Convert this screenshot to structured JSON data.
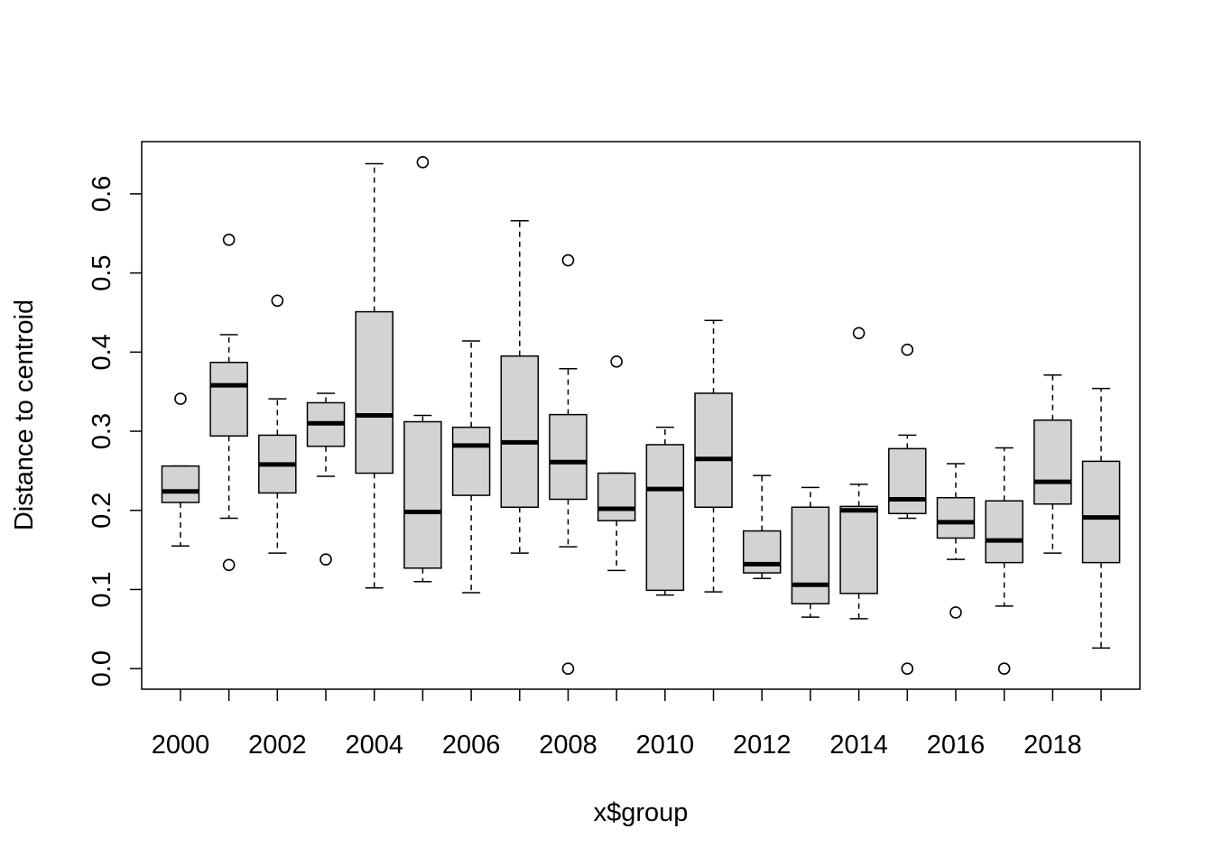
{
  "chart_data": {
    "type": "boxplot",
    "title": "",
    "xlabel": "x$group",
    "ylabel": "Distance to centroid",
    "ylim": [
      -0.026,
      0.666
    ],
    "yticks": [
      "0.0",
      "0.1",
      "0.2",
      "0.3",
      "0.4",
      "0.5",
      "0.6"
    ],
    "xtick_labels": [
      "2000",
      "2002",
      "2004",
      "2006",
      "2008",
      "2010",
      "2012",
      "2014",
      "2016",
      "2018"
    ],
    "grid": false,
    "groups": [
      {
        "group": "2000",
        "low": 0.155,
        "q1": 0.21,
        "median": 0.224,
        "q3": 0.256,
        "high": 0.256,
        "outliers": [
          0.341
        ]
      },
      {
        "group": "2001",
        "low": 0.19,
        "q1": 0.294,
        "median": 0.358,
        "q3": 0.387,
        "high": 0.422,
        "outliers": [
          0.542,
          0.131
        ]
      },
      {
        "group": "2002",
        "low": 0.146,
        "q1": 0.222,
        "median": 0.258,
        "q3": 0.295,
        "high": 0.341,
        "outliers": [
          0.465
        ]
      },
      {
        "group": "2003",
        "low": 0.243,
        "q1": 0.281,
        "median": 0.31,
        "q3": 0.336,
        "high": 0.348,
        "outliers": [
          0.138
        ]
      },
      {
        "group": "2004",
        "low": 0.102,
        "q1": 0.247,
        "median": 0.32,
        "q3": 0.451,
        "high": 0.638,
        "outliers": []
      },
      {
        "group": "2005",
        "low": 0.11,
        "q1": 0.127,
        "median": 0.198,
        "q3": 0.312,
        "high": 0.32,
        "outliers": [
          0.64
        ]
      },
      {
        "group": "2006",
        "low": 0.096,
        "q1": 0.219,
        "median": 0.282,
        "q3": 0.305,
        "high": 0.414,
        "outliers": []
      },
      {
        "group": "2007",
        "low": 0.146,
        "q1": 0.204,
        "median": 0.286,
        "q3": 0.395,
        "high": 0.566,
        "outliers": []
      },
      {
        "group": "2008",
        "low": 0.154,
        "q1": 0.214,
        "median": 0.261,
        "q3": 0.321,
        "high": 0.379,
        "outliers": [
          0.516,
          0.0
        ]
      },
      {
        "group": "2009",
        "low": 0.124,
        "q1": 0.187,
        "median": 0.202,
        "q3": 0.247,
        "high": 0.247,
        "outliers": [
          0.388
        ]
      },
      {
        "group": "2010",
        "low": 0.093,
        "q1": 0.099,
        "median": 0.227,
        "q3": 0.283,
        "high": 0.305,
        "outliers": []
      },
      {
        "group": "2011",
        "low": 0.097,
        "q1": 0.204,
        "median": 0.265,
        "q3": 0.348,
        "high": 0.44,
        "outliers": []
      },
      {
        "group": "2012",
        "low": 0.114,
        "q1": 0.121,
        "median": 0.132,
        "q3": 0.174,
        "high": 0.244,
        "outliers": []
      },
      {
        "group": "2013",
        "low": 0.065,
        "q1": 0.082,
        "median": 0.106,
        "q3": 0.204,
        "high": 0.229,
        "outliers": []
      },
      {
        "group": "2014",
        "low": 0.063,
        "q1": 0.095,
        "median": 0.2,
        "q3": 0.205,
        "high": 0.233,
        "outliers": [
          0.424
        ]
      },
      {
        "group": "2015",
        "low": 0.19,
        "q1": 0.196,
        "median": 0.214,
        "q3": 0.278,
        "high": 0.295,
        "outliers": [
          0.403,
          0.0
        ]
      },
      {
        "group": "2016",
        "low": 0.138,
        "q1": 0.165,
        "median": 0.185,
        "q3": 0.216,
        "high": 0.259,
        "outliers": [
          0.071
        ]
      },
      {
        "group": "2017",
        "low": 0.079,
        "q1": 0.134,
        "median": 0.162,
        "q3": 0.212,
        "high": 0.279,
        "outliers": [
          0.0
        ]
      },
      {
        "group": "2018",
        "low": 0.146,
        "q1": 0.208,
        "median": 0.236,
        "q3": 0.314,
        "high": 0.371,
        "outliers": []
      },
      {
        "group": "2019",
        "low": 0.026,
        "q1": 0.134,
        "median": 0.191,
        "q3": 0.262,
        "high": 0.354,
        "outliers": []
      }
    ],
    "colors": {
      "box_fill": "#d3d3d3",
      "line": "#000000",
      "background": "#ffffff"
    }
  }
}
